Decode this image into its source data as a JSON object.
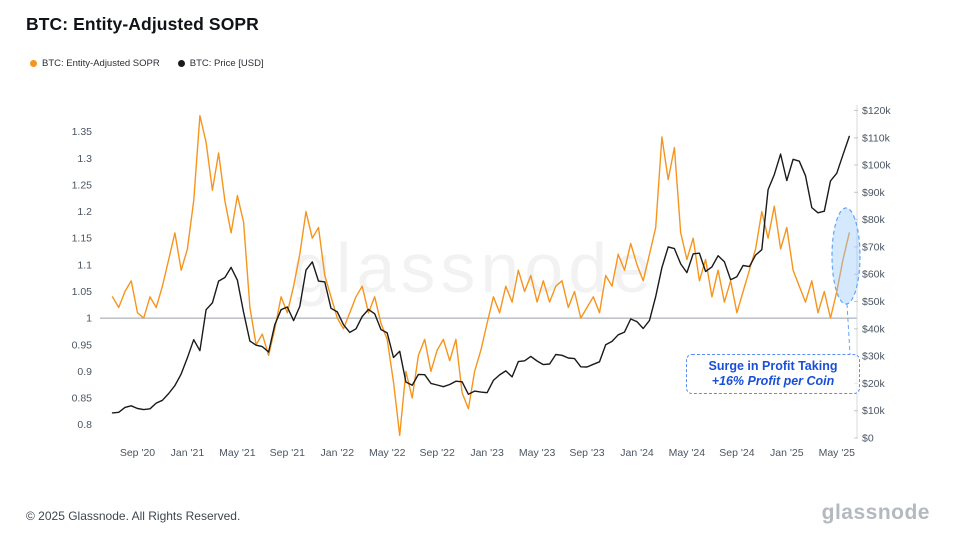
{
  "header": {
    "title": "BTC: Entity-Adjusted SOPR"
  },
  "legend": [
    {
      "label": "BTC: Entity-Adjusted SOPR",
      "color": "#f7941d"
    },
    {
      "label": "BTC: Price [USD]",
      "color": "#1a1a1a"
    }
  ],
  "watermark": "glassnode",
  "annotation": {
    "line1": "Surge in Profit Taking",
    "line2": "+16% Profit per Coin",
    "color": "#1a4fd8"
  },
  "footer": {
    "copyright": "© 2025 Glassnode. All Rights Reserved.",
    "brand": "glassnode"
  },
  "chart_data": {
    "type": "line",
    "title": "BTC: Entity-Adjusted SOPR",
    "x_start_month": "2020-07",
    "x_step_months": 0.5,
    "x_tick_labels": [
      "Sep '20",
      "Jan '21",
      "May '21",
      "Sep '21",
      "Jan '22",
      "May '22",
      "Sep '22",
      "Jan '23",
      "May '23",
      "Sep '23",
      "Jan '24",
      "May '24",
      "Sep '24",
      "Jan '25",
      "May '25"
    ],
    "x_tick_positions": [
      2,
      6,
      10,
      14,
      18,
      22,
      26,
      30,
      34,
      38,
      42,
      46,
      50,
      54,
      58
    ],
    "baseline": 1.0,
    "y_left": {
      "label": "Entity-Adjusted SOPR",
      "ticks": [
        0.8,
        0.85,
        0.9,
        0.95,
        1,
        1.05,
        1.1,
        1.15,
        1.2,
        1.25,
        1.3,
        1.35
      ],
      "range": [
        0.775,
        1.4
      ]
    },
    "y_right": {
      "label": "BTC Price [USD]",
      "tick_labels": [
        "$0",
        "$10k",
        "$20k",
        "$30k",
        "$40k",
        "$50k",
        "$60k",
        "$70k",
        "$80k",
        "$90k",
        "$100k",
        "$110k",
        "$120k"
      ],
      "tick_values": [
        0,
        10,
        20,
        30,
        40,
        50,
        60,
        70,
        80,
        90,
        100,
        110,
        120
      ],
      "range": [
        0,
        122
      ],
      "unit": "USD thousands"
    },
    "series": [
      {
        "name": "BTC: Entity-Adjusted SOPR",
        "axis": "left",
        "color": "#f7941d",
        "values": [
          1.04,
          1.02,
          1.05,
          1.07,
          1.01,
          1.0,
          1.04,
          1.02,
          1.06,
          1.11,
          1.16,
          1.09,
          1.13,
          1.22,
          1.38,
          1.33,
          1.24,
          1.31,
          1.22,
          1.16,
          1.23,
          1.18,
          1.02,
          0.95,
          0.97,
          0.93,
          0.98,
          1.04,
          1.01,
          1.06,
          1.12,
          1.2,
          1.15,
          1.17,
          1.08,
          1.04,
          1.0,
          0.98,
          1.01,
          1.04,
          1.06,
          1.01,
          1.04,
          0.99,
          0.96,
          0.88,
          0.78,
          0.9,
          0.85,
          0.93,
          0.96,
          0.9,
          0.94,
          0.96,
          0.92,
          0.96,
          0.86,
          0.83,
          0.9,
          0.94,
          0.99,
          1.04,
          1.01,
          1.06,
          1.03,
          1.09,
          1.05,
          1.08,
          1.03,
          1.07,
          1.03,
          1.06,
          1.07,
          1.02,
          1.05,
          1.0,
          1.02,
          1.04,
          1.01,
          1.08,
          1.06,
          1.12,
          1.09,
          1.14,
          1.1,
          1.07,
          1.12,
          1.17,
          1.34,
          1.26,
          1.32,
          1.16,
          1.11,
          1.15,
          1.07,
          1.11,
          1.04,
          1.09,
          1.03,
          1.07,
          1.01,
          1.05,
          1.09,
          1.13,
          1.2,
          1.15,
          1.21,
          1.13,
          1.17,
          1.09,
          1.06,
          1.03,
          1.07,
          1.01,
          1.05,
          1.0,
          1.05,
          1.11,
          1.16
        ]
      },
      {
        "name": "BTC: Price [USD]",
        "axis": "right",
        "color": "#1a1a1a",
        "values": [
          9.2,
          9.4,
          11.2,
          11.8,
          10.8,
          10.4,
          10.7,
          12.8,
          13.8,
          16.3,
          19.2,
          23.5,
          29.4,
          36.0,
          32.0,
          47.0,
          49.5,
          57.5,
          58.8,
          62.5,
          57.8,
          46.0,
          35.5,
          34.0,
          33.5,
          31.5,
          41.5,
          47.0,
          48.0,
          43.0,
          48.2,
          61.5,
          64.5,
          57.5,
          57.2,
          47.5,
          46.2,
          41.5,
          38.7,
          40.0,
          44.5,
          47.1,
          45.5,
          39.7,
          38.5,
          29.5,
          31.8,
          20.5,
          19.3,
          23.3,
          23.2,
          20.0,
          19.4,
          18.8,
          19.6,
          20.8,
          20.6,
          16.0,
          17.2,
          16.8,
          16.6,
          21.1,
          23.1,
          24.6,
          22.4,
          28.0,
          28.3,
          29.9,
          28.2,
          26.9,
          27.1,
          30.6,
          30.3,
          29.3,
          29.1,
          26.1,
          26.0,
          27.0,
          27.9,
          34.2,
          35.4,
          37.8,
          38.8,
          43.6,
          42.6,
          40.1,
          43.1,
          51.8,
          62.4,
          70.0,
          69.4,
          63.8,
          60.6,
          67.5,
          67.7,
          61.0,
          62.7,
          66.8,
          64.6,
          58.0,
          59.1,
          63.2,
          62.8,
          67.0,
          69.0,
          91.0,
          96.5,
          104.0,
          94.3,
          102.1,
          101.4,
          96.1,
          84.4,
          82.5,
          83.1,
          94.2,
          97.0,
          103.8,
          110.5
        ]
      }
    ]
  }
}
